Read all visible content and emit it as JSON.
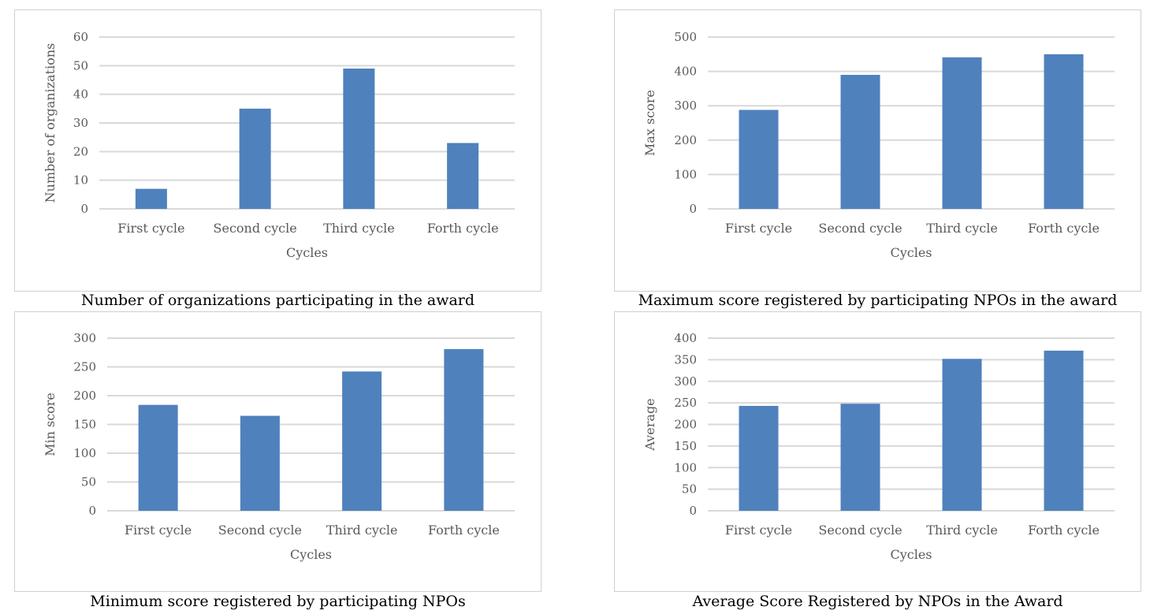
{
  "chart_data": [
    {
      "type": "bar",
      "caption": "Number of organizations participating in the award",
      "categories": [
        "First cycle",
        "Second cycle",
        "Third cycle",
        "Forth cycle"
      ],
      "values": [
        7,
        35,
        49,
        23
      ],
      "xlabel": "Cycles",
      "ylabel": "Number of organizations",
      "ylim": [
        0,
        60
      ],
      "yticks": [
        0,
        10,
        20,
        30,
        40,
        50,
        60
      ],
      "grid": true,
      "bar_color": "#4f81bd"
    },
    {
      "type": "bar",
      "caption": "Maximum score registered by participating NPOs in the award",
      "categories": [
        "First cycle",
        "Second cycle",
        "Third cycle",
        "Forth cycle"
      ],
      "values": [
        288,
        390,
        441,
        450
      ],
      "xlabel": "Cycles",
      "ylabel": "Max score",
      "ylim": [
        0,
        500
      ],
      "yticks": [
        0,
        100,
        200,
        300,
        400,
        500
      ],
      "grid": true,
      "bar_color": "#4f81bd"
    },
    {
      "type": "bar",
      "caption": "Minimum score registered by participating NPOs",
      "categories": [
        "First cycle",
        "Second cycle",
        "Third cycle",
        "Forth cycle"
      ],
      "values": [
        184,
        165,
        242,
        281
      ],
      "xlabel": "Cycles",
      "ylabel": "Min score",
      "ylim": [
        0,
        300
      ],
      "yticks": [
        0,
        50,
        100,
        150,
        200,
        250,
        300
      ],
      "grid": true,
      "bar_color": "#4f81bd"
    },
    {
      "type": "bar",
      "caption": "Average Score Registered by NPOs in the Award",
      "categories": [
        "First cycle",
        "Second cycle",
        "Third cycle",
        "Forth cycle"
      ],
      "values": [
        243,
        248,
        352,
        371
      ],
      "xlabel": "Cycles",
      "ylabel": "Average",
      "ylim": [
        0,
        400
      ],
      "yticks": [
        0,
        50,
        100,
        150,
        200,
        250,
        300,
        350,
        400
      ],
      "grid": true,
      "bar_color": "#4f81bd"
    }
  ]
}
